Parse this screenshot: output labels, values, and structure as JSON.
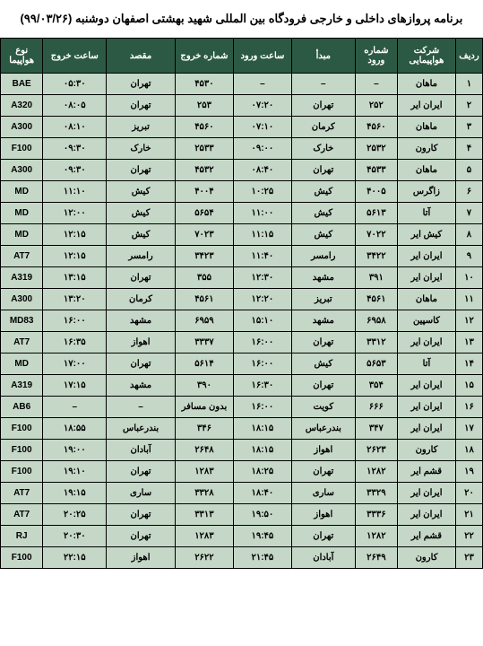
{
  "title": "برنامه پروازهای داخلی و خارجی فرودگاه بین المللی شهید بهشتی اصفهان دوشنبه  (۹۹/۰۳/۲۶)",
  "colors": {
    "header_bg": "#2c5943",
    "header_text": "#ffffff",
    "row_bg": "#c5d8c7",
    "border": "#000000"
  },
  "headers": {
    "row": "ردیف",
    "airline": "شرکت هواپیمایی",
    "arr_no": "شماره ورود",
    "origin": "مبدأ",
    "arr_time": "ساعت ورود",
    "dep_no": "شماره خروج",
    "dest": "مقصد",
    "dep_time": "ساعت خروج",
    "type": "نوع هواپیما"
  },
  "rows": [
    {
      "n": "۱",
      "airline": "ماهان",
      "arr_no": "–",
      "origin": "–",
      "arr_time": "–",
      "dep_no": "۴۵۳۰",
      "dest": "تهران",
      "dep_time": "۰۵:۳۰",
      "type": "BAE"
    },
    {
      "n": "۲",
      "airline": "ایران ایر",
      "arr_no": "۲۵۲",
      "origin": "تهران",
      "arr_time": "۰۷:۲۰",
      "dep_no": "۲۵۳",
      "dest": "تهران",
      "dep_time": "۰۸:۰۵",
      "type": "A320"
    },
    {
      "n": "۳",
      "airline": "ماهان",
      "arr_no": "۴۵۶۰",
      "origin": "کرمان",
      "arr_time": "۰۷:۱۰",
      "dep_no": "۴۵۶۰",
      "dest": "تبریز",
      "dep_time": "۰۸:۱۰",
      "type": "A300"
    },
    {
      "n": "۴",
      "airline": "کارون",
      "arr_no": "۲۵۳۲",
      "origin": "خارک",
      "arr_time": "۰۹:۰۰",
      "dep_no": "۲۵۳۳",
      "dest": "خارک",
      "dep_time": "۰۹:۳۰",
      "type": "F100"
    },
    {
      "n": "۵",
      "airline": "ماهان",
      "arr_no": "۴۵۳۳",
      "origin": "تهران",
      "arr_time": "۰۸:۴۰",
      "dep_no": "۴۵۳۲",
      "dest": "تهران",
      "dep_time": "۰۹:۳۰",
      "type": "A300"
    },
    {
      "n": "۶",
      "airline": "زاگرس",
      "arr_no": "۴۰۰۵",
      "origin": "کیش",
      "arr_time": "۱۰:۲۵",
      "dep_no": "۴۰۰۴",
      "dest": "کیش",
      "dep_time": "۱۱:۱۰",
      "type": "MD"
    },
    {
      "n": "۷",
      "airline": "آتا",
      "arr_no": "۵۶۱۳",
      "origin": "کیش",
      "arr_time": "۱۱:۰۰",
      "dep_no": "۵۶۵۴",
      "dest": "کیش",
      "dep_time": "۱۲:۰۰",
      "type": "MD"
    },
    {
      "n": "۸",
      "airline": "کیش ایر",
      "arr_no": "۷۰۲۲",
      "origin": "کیش",
      "arr_time": "۱۱:۱۵",
      "dep_no": "۷۰۲۳",
      "dest": "کیش",
      "dep_time": "۱۲:۱۵",
      "type": "MD"
    },
    {
      "n": "۹",
      "airline": "ایران ایر",
      "arr_no": "۳۴۲۲",
      "origin": "رامسر",
      "arr_time": "۱۱:۴۰",
      "dep_no": "۳۴۲۳",
      "dest": "رامسر",
      "dep_time": "۱۲:۱۵",
      "type": "AT7"
    },
    {
      "n": "۱۰",
      "airline": "ایران ایر",
      "arr_no": "۳۹۱",
      "origin": "مشهد",
      "arr_time": "۱۲:۳۰",
      "dep_no": "۳۵۵",
      "dest": "تهران",
      "dep_time": "۱۳:۱۵",
      "type": "A319"
    },
    {
      "n": "۱۱",
      "airline": "ماهان",
      "arr_no": "۴۵۶۱",
      "origin": "تبریز",
      "arr_time": "۱۲:۲۰",
      "dep_no": "۴۵۶۱",
      "dest": "کرمان",
      "dep_time": "۱۳:۲۰",
      "type": "A300"
    },
    {
      "n": "۱۲",
      "airline": "کاسپین",
      "arr_no": "۶۹۵۸",
      "origin": "مشهد",
      "arr_time": "۱۵:۱۰",
      "dep_no": "۶۹۵۹",
      "dest": "مشهد",
      "dep_time": "۱۶:۰۰",
      "type": "MD83"
    },
    {
      "n": "۱۳",
      "airline": "ایران ایر",
      "arr_no": "۳۳۱۲",
      "origin": "تهران",
      "arr_time": "۱۶:۰۰",
      "dep_no": "۳۳۳۷",
      "dest": "اهواز",
      "dep_time": "۱۶:۳۵",
      "type": "AT7"
    },
    {
      "n": "۱۴",
      "airline": "آتا",
      "arr_no": "۵۶۵۳",
      "origin": "کیش",
      "arr_time": "۱۶:۰۰",
      "dep_no": "۵۶۱۴",
      "dest": "تهران",
      "dep_time": "۱۷:۰۰",
      "type": "MD"
    },
    {
      "n": "۱۵",
      "airline": "ایران ایر",
      "arr_no": "۳۵۴",
      "origin": "تهران",
      "arr_time": "۱۶:۳۰",
      "dep_no": "۳۹۰",
      "dest": "مشهد",
      "dep_time": "۱۷:۱۵",
      "type": "A319"
    },
    {
      "n": "۱۶",
      "airline": "ایران ایر",
      "arr_no": "۶۶۶",
      "origin": "کویت",
      "arr_time": "۱۶:۰۰",
      "dep_no": "بدون مسافر",
      "dest": "–",
      "dep_time": "–",
      "type": "AB6"
    },
    {
      "n": "۱۷",
      "airline": "ایران ایر",
      "arr_no": "۳۴۷",
      "origin": "بندرعباس",
      "arr_time": "۱۸:۱۵",
      "dep_no": "۳۴۶",
      "dest": "بندرعباس",
      "dep_time": "۱۸:۵۵",
      "type": "F100"
    },
    {
      "n": "۱۸",
      "airline": "کارون",
      "arr_no": "۲۶۲۳",
      "origin": "اهواز",
      "arr_time": "۱۸:۱۵",
      "dep_no": "۲۶۴۸",
      "dest": "آبادان",
      "dep_time": "۱۹:۰۰",
      "type": "F100"
    },
    {
      "n": "۱۹",
      "airline": "قشم ایر",
      "arr_no": "۱۲۸۲",
      "origin": "تهران",
      "arr_time": "۱۸:۲۵",
      "dep_no": "۱۲۸۳",
      "dest": "تهران",
      "dep_time": "۱۹:۱۰",
      "type": "F100"
    },
    {
      "n": "۲۰",
      "airline": "ایران ایر",
      "arr_no": "۳۳۲۹",
      "origin": "ساری",
      "arr_time": "۱۸:۴۰",
      "dep_no": "۳۳۲۸",
      "dest": "ساری",
      "dep_time": "۱۹:۱۵",
      "type": "AT7"
    },
    {
      "n": "۲۱",
      "airline": "ایران ایر",
      "arr_no": "۳۳۳۶",
      "origin": "اهواز",
      "arr_time": "۱۹:۵۰",
      "dep_no": "۳۳۱۳",
      "dest": "تهران",
      "dep_time": "۲۰:۲۵",
      "type": "AT7"
    },
    {
      "n": "۲۲",
      "airline": "قشم ایر",
      "arr_no": "۱۲۸۲",
      "origin": "تهران",
      "arr_time": "۱۹:۴۵",
      "dep_no": "۱۲۸۳",
      "dest": "تهران",
      "dep_time": "۲۰:۳۰",
      "type": "RJ"
    },
    {
      "n": "۲۳",
      "airline": "کارون",
      "arr_no": "۲۶۴۹",
      "origin": "آبادان",
      "arr_time": "۲۱:۴۵",
      "dep_no": "۲۶۲۲",
      "dest": "اهواز",
      "dep_time": "۲۲:۱۵",
      "type": "F100"
    }
  ]
}
